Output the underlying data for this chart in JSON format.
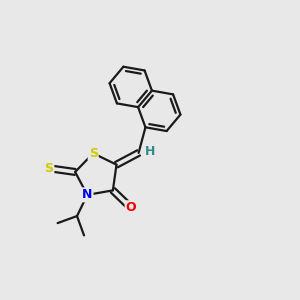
{
  "bg_color": "#e8e8e8",
  "bond_color": "#1a1a1a",
  "bond_width": 1.6,
  "atom_colors": {
    "S_ring": "#cccc00",
    "S_exo": "#cccc00",
    "N": "#0000ee",
    "O": "#ee0000",
    "H": "#2e8b8b",
    "C": "#1a1a1a"
  },
  "figsize": [
    3.0,
    3.0
  ],
  "dpi": 100
}
